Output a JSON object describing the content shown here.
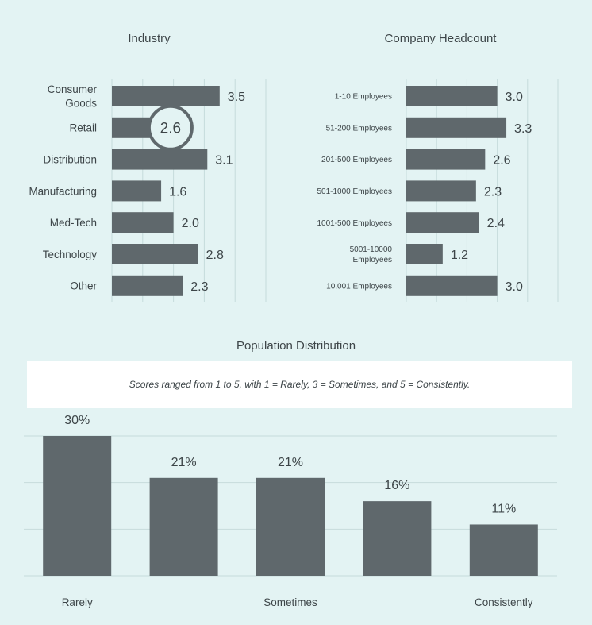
{
  "chart_data": [
    {
      "type": "bar",
      "orientation": "horizontal",
      "title": "Industry",
      "categories": [
        "Consumer Goods",
        "Retail",
        "Distribution",
        "Manufacturing",
        "Med-Tech",
        "Technology",
        "Other"
      ],
      "values": [
        3.5,
        2.6,
        3.1,
        1.6,
        2.0,
        2.8,
        2.3
      ],
      "value_labels": [
        "3.5",
        "2.6",
        "3.1",
        "1.6",
        "2.0",
        "2.8",
        "2.3"
      ],
      "highlighted_category": "Retail",
      "xlim": [
        0,
        5
      ],
      "grid": true
    },
    {
      "type": "bar",
      "orientation": "horizontal",
      "title": "Company Headcount",
      "categories": [
        "1-10 Employees",
        "51-200 Employees",
        "201-500 Employees",
        "501-1000 Employees",
        "1001-500 Employees",
        "5001-10000 Employees",
        "10,001 Employees"
      ],
      "values": [
        3.0,
        3.3,
        2.6,
        2.3,
        2.4,
        1.2,
        3.0
      ],
      "value_labels": [
        "3.0",
        "3.3",
        "2.6",
        "2.3",
        "2.4",
        "1.2",
        "3.0"
      ],
      "xlim": [
        0,
        5
      ],
      "grid": true
    },
    {
      "type": "bar",
      "orientation": "vertical",
      "title": "Population Distribution",
      "note": "Scores ranged from 1 to 5, with 1 = Rarely, 3 = Sometimes, and 5 = Consistently.",
      "categories": [
        "1",
        "2",
        "3",
        "4",
        "5"
      ],
      "tick_labels": [
        "Rarely",
        "",
        "Sometimes",
        "",
        "Consistently"
      ],
      "values": [
        30,
        21,
        21,
        16,
        11
      ],
      "value_labels": [
        "30%",
        "21%",
        "21%",
        "16%",
        "11%"
      ],
      "ylim": [
        0,
        30
      ],
      "grid": true
    }
  ],
  "colors": {
    "background": "#e3f3f3",
    "bar": "#5f686c",
    "grid": "#c6dbdb",
    "text": "#3d4548",
    "note_background": "#ffffff"
  }
}
